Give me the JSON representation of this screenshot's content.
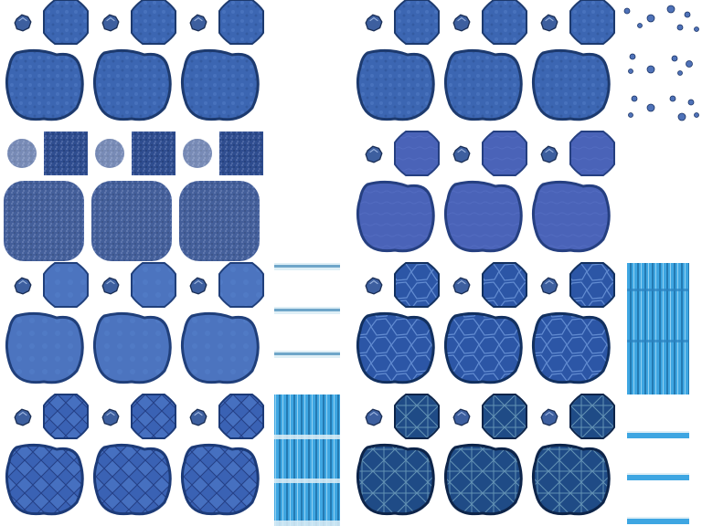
{
  "sheet": {
    "background": "#ffffff",
    "tilesets": [
      {
        "id": "deep-water",
        "color": "#3c66b2",
        "edge": "#1d3a6e",
        "style": "ripple"
      },
      {
        "id": "calm-water",
        "color": "#4a63b8",
        "edge": "#253f80",
        "style": "flat"
      },
      {
        "id": "dark-water",
        "color": "#2f4d8f",
        "edge": "#15264d",
        "style": "speckle"
      },
      {
        "id": "tiled-water",
        "color": "#2c56a6",
        "edge": "#12305f",
        "style": "cells"
      },
      {
        "id": "smooth-water",
        "color": "#4c74bf",
        "edge": "#203f7a",
        "style": "flat"
      },
      {
        "id": "cracked-water",
        "color": "#2b4f9a",
        "edge": "#0f2a58",
        "style": "cracks"
      },
      {
        "id": "rock-water",
        "color": "#3a62b4",
        "edge": "#1c3a77",
        "style": "plates"
      },
      {
        "id": "mesh-water",
        "color": "#1f4b86",
        "edge": "#0d2449",
        "style": "mesh"
      }
    ],
    "waterfall_color": "#3ea6e2",
    "foam_color": "#dfeff6"
  }
}
